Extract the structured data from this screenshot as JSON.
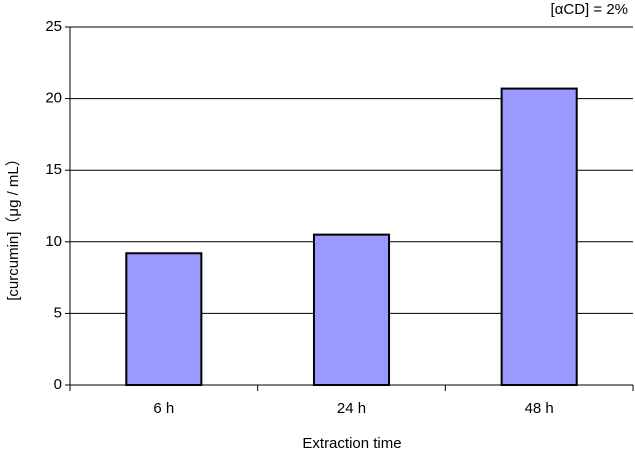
{
  "chart_data": {
    "type": "bar",
    "annotation": "[αCD] = 2%",
    "xlabel": "Extraction time",
    "ylabel": "[curcumin]（μg / mL）",
    "categories": [
      "6 h",
      "24 h",
      "48 h"
    ],
    "values": [
      9.2,
      10.5,
      20.7
    ],
    "color": "#9999ff",
    "ylim": [
      0,
      25
    ],
    "yticks": [
      0,
      5,
      10,
      15,
      20,
      25
    ],
    "grid": true
  }
}
